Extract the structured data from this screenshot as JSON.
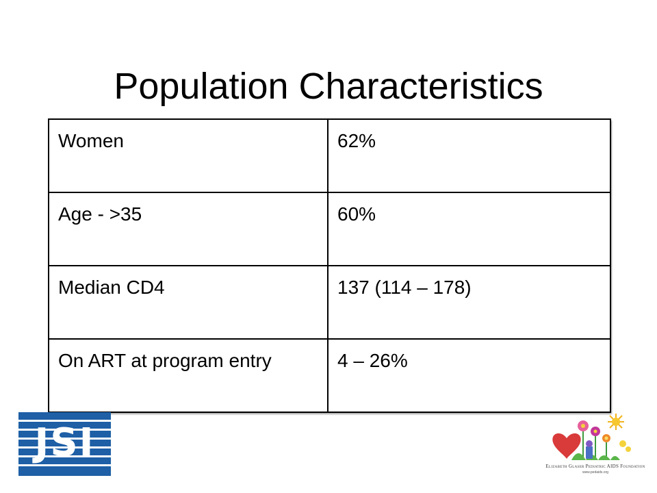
{
  "slide": {
    "title": "Population Characteristics"
  },
  "table": {
    "rows": [
      {
        "label": "Women",
        "value": "62%"
      },
      {
        "label": "Age - >35",
        "value": "60%"
      },
      {
        "label": "Median CD4",
        "value": "137 (114 – 178)"
      },
      {
        "label": "On ART at program entry",
        "value": "4 – 26%"
      }
    ]
  },
  "logos": {
    "jsi": {
      "text": "JSI",
      "color": "#1e5fa6"
    },
    "egpaf": {
      "name": "Elizabeth Glaser Pediatric AIDS Foundation",
      "url": "www.pedaids.org"
    }
  }
}
